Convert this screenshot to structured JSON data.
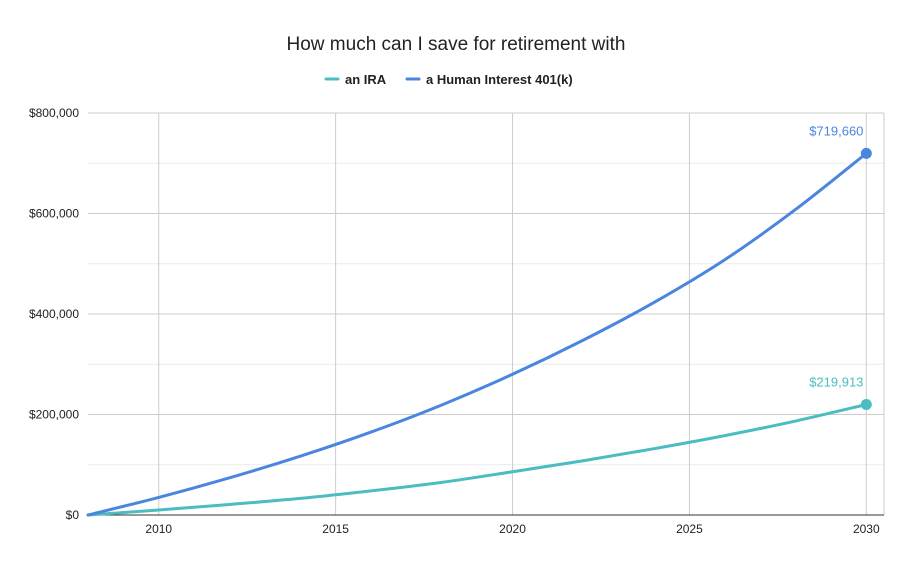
{
  "chart_data": {
    "type": "line",
    "title": "How much can I save for retirement with",
    "xlabel": "",
    "ylabel": "",
    "xlim": [
      2008,
      2030.5
    ],
    "ylim": [
      0,
      800000
    ],
    "x_ticks": [
      2010,
      2015,
      2020,
      2025,
      2030
    ],
    "x_tick_labels": [
      "2010",
      "2015",
      "2020",
      "2025",
      "2030"
    ],
    "y_ticks": [
      0,
      200000,
      400000,
      600000,
      800000
    ],
    "y_tick_labels": [
      "$0",
      "$200,000",
      "$400,000",
      "$600,000",
      "$800,000"
    ],
    "grid": true,
    "legend_position": "top",
    "series": [
      {
        "name": "an IRA",
        "color": "#4bbcbf",
        "x": [
          2008,
          2010,
          2012,
          2014,
          2016,
          2018,
          2020,
          2022,
          2024,
          2026,
          2028,
          2030
        ],
        "values": [
          0,
          10000,
          21000,
          33000,
          48000,
          65000,
          86000,
          108000,
          132000,
          158000,
          187000,
          219913
        ],
        "end_label": "$219,913"
      },
      {
        "name": "a Human Interest 401(k)",
        "color": "#4a86e0",
        "x": [
          2008,
          2010,
          2012,
          2014,
          2016,
          2018,
          2020,
          2022,
          2024,
          2026,
          2028,
          2030
        ],
        "values": [
          0,
          35000,
          74000,
          117000,
          165000,
          219000,
          280000,
          348000,
          423000,
          508000,
          608000,
          719660
        ],
        "end_label": "$719,660"
      }
    ]
  }
}
